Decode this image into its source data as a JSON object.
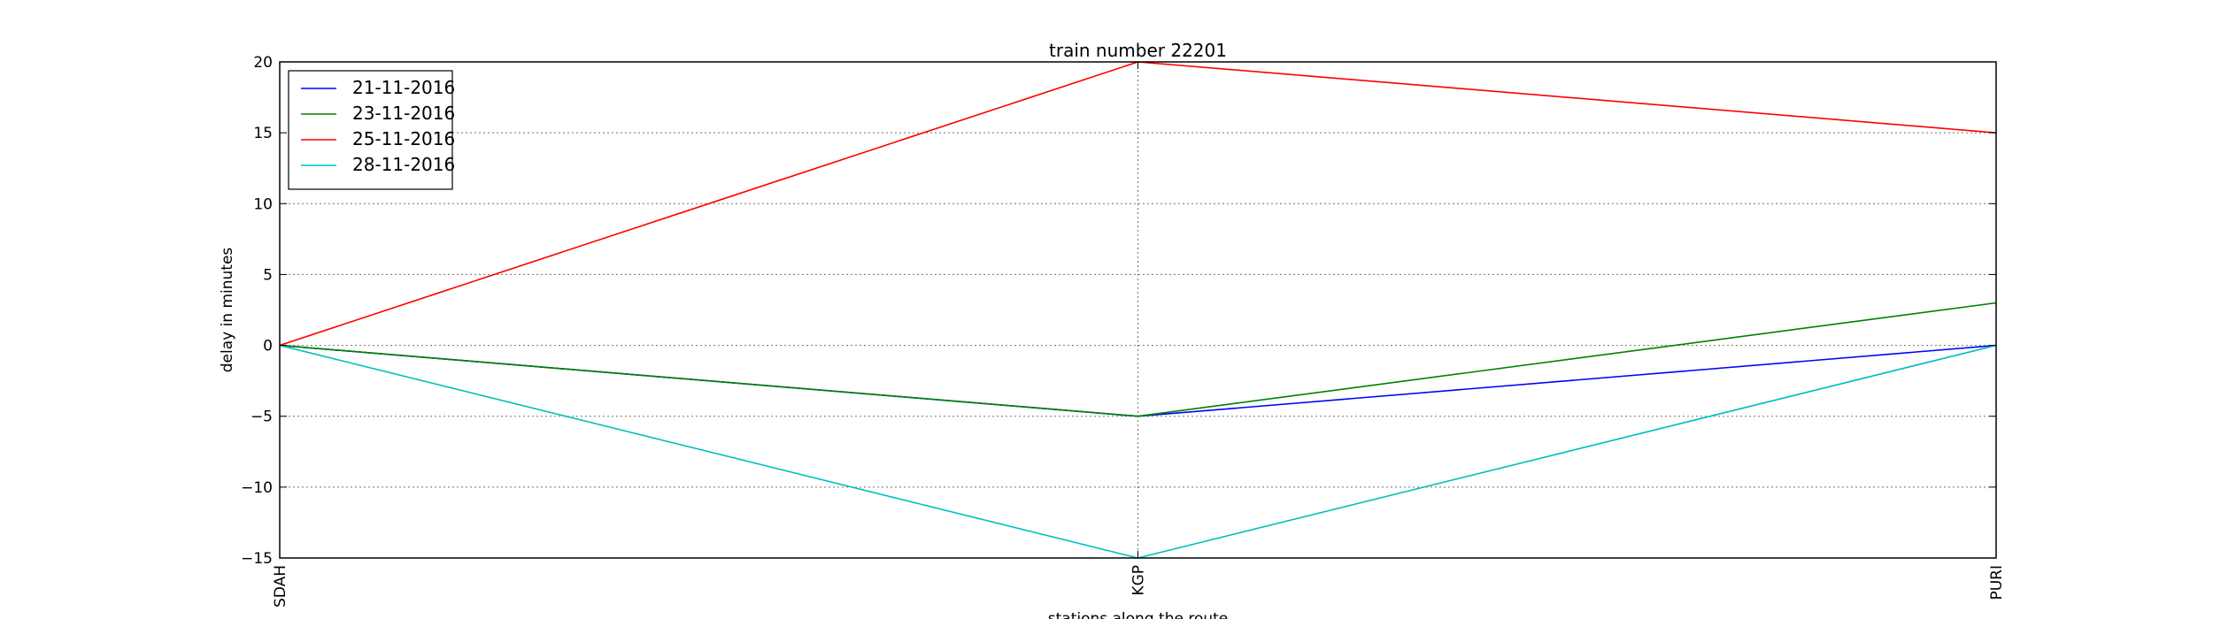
{
  "chart_data": {
    "type": "line",
    "title": "train number 22201",
    "xlabel": "stations along the route",
    "ylabel": "delay in minutes",
    "categories": [
      "SDAH",
      "KGP",
      "PURI"
    ],
    "ylim": [
      -15,
      20
    ],
    "yticks": [
      -15,
      -10,
      -5,
      0,
      5,
      10,
      15,
      20
    ],
    "yticklabels": [
      "−15",
      "−10",
      "−5",
      "0",
      "5",
      "10",
      "15",
      "20"
    ],
    "grid": true,
    "legend_position": "top-left",
    "series": [
      {
        "name": "21-11-2016",
        "color": "#0000ff",
        "values": [
          0,
          -5,
          0
        ]
      },
      {
        "name": "23-11-2016",
        "color": "#008000",
        "values": [
          0,
          -5,
          3
        ]
      },
      {
        "name": "25-11-2016",
        "color": "#ff0000",
        "values": [
          0,
          20,
          15
        ]
      },
      {
        "name": "28-11-2016",
        "color": "#00bfbf",
        "values": [
          0,
          -15,
          0
        ]
      }
    ]
  }
}
